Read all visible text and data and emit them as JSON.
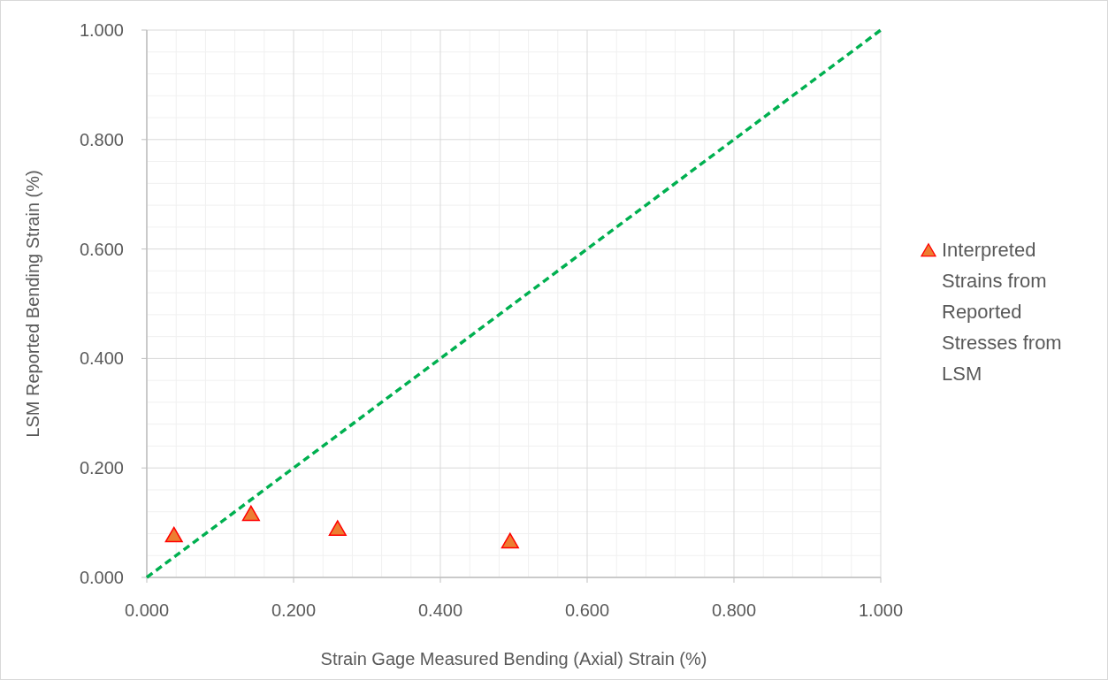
{
  "chart_data": {
    "type": "scatter",
    "xlabel": "Strain Gage Measured Bending (Axial) Strain (%)",
    "ylabel": "LSM Reported Bending Strain (%)",
    "xlim": [
      0,
      1
    ],
    "ylim": [
      0,
      1
    ],
    "xticks": [
      {
        "value": 0,
        "label": "0.000"
      },
      {
        "value": 0.2,
        "label": "0.200"
      },
      {
        "value": 0.4,
        "label": "0.400"
      },
      {
        "value": 0.6,
        "label": "0.600"
      },
      {
        "value": 0.8,
        "label": "0.800"
      },
      {
        "value": 1,
        "label": "1.000"
      }
    ],
    "yticks": [
      {
        "value": 0,
        "label": "0.000"
      },
      {
        "value": 0.2,
        "label": "0.200"
      },
      {
        "value": 0.4,
        "label": "0.400"
      },
      {
        "value": 0.6,
        "label": "0.600"
      },
      {
        "value": 0.8,
        "label": "0.800"
      },
      {
        "value": 1,
        "label": "1.000"
      }
    ],
    "grid": true,
    "legend": "right",
    "marker": "triangle",
    "series": [
      {
        "name": "Interpreted Strains from Reported Stresses from LSM",
        "color": "#ed7d31",
        "x": [
          0.037,
          0.142,
          0.26,
          0.495
        ],
        "values": [
          0.074,
          0.113,
          0.086,
          0.063
        ]
      },
      {
        "type": "line",
        "color": "#00b050",
        "line_style": "dashed",
        "marker": "none",
        "x": [
          0,
          1
        ],
        "values": [
          0,
          1
        ]
      }
    ]
  }
}
